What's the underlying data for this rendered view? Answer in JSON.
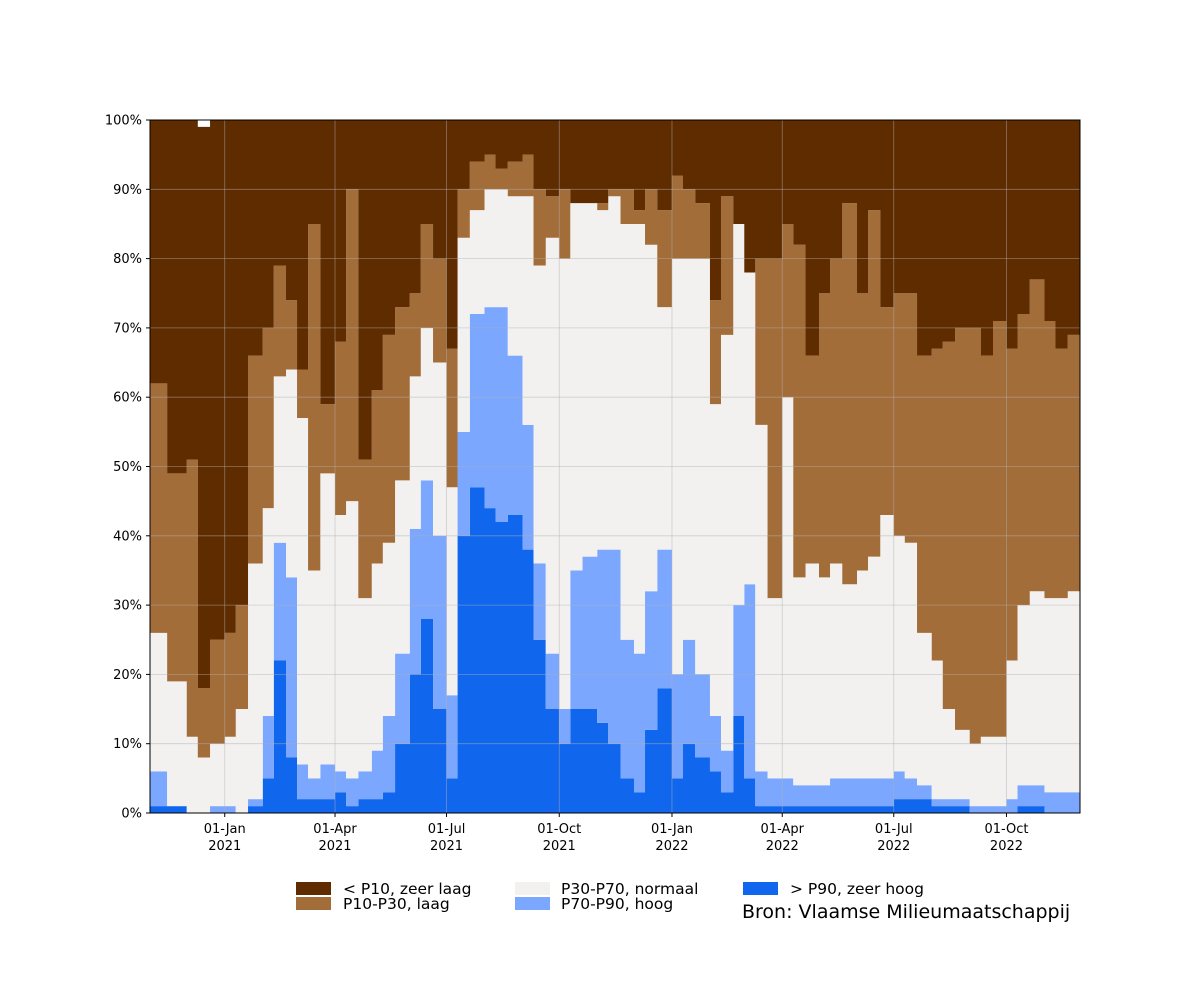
{
  "chart_data": {
    "type": "area",
    "stacked": true,
    "x_unit": "date",
    "y_unit": "percent",
    "ylim": [
      0,
      100
    ],
    "xlim": [
      "2020-11-01",
      "2022-11-30"
    ],
    "grid": true,
    "legend_placement": "bottom",
    "yticks": [
      {
        "value": 0,
        "label": "0%"
      },
      {
        "value": 10,
        "label": "10%"
      },
      {
        "value": 20,
        "label": "20%"
      },
      {
        "value": 30,
        "label": "30%"
      },
      {
        "value": 40,
        "label": "40%"
      },
      {
        "value": 50,
        "label": "50%"
      },
      {
        "value": 60,
        "label": "60%"
      },
      {
        "value": 70,
        "label": "70%"
      },
      {
        "value": 80,
        "label": "80%"
      },
      {
        "value": 90,
        "label": "90%"
      },
      {
        "value": 100,
        "label": "100%"
      }
    ],
    "xticks": [
      {
        "date": "2021-01-01",
        "label1": "01-Jan",
        "label2": "2021"
      },
      {
        "date": "2021-04-01",
        "label1": "01-Apr",
        "label2": "2021"
      },
      {
        "date": "2021-07-01",
        "label1": "01-Jul",
        "label2": "2021"
      },
      {
        "date": "2021-10-01",
        "label1": "01-Oct",
        "label2": "2021"
      },
      {
        "date": "2022-01-01",
        "label1": "01-Jan",
        "label2": "2022"
      },
      {
        "date": "2022-04-01",
        "label1": "01-Apr",
        "label2": "2022"
      },
      {
        "date": "2022-07-01",
        "label1": "01-Jul",
        "label2": "2022"
      },
      {
        "date": "2022-10-01",
        "label1": "01-Oct",
        "label2": "2022"
      }
    ],
    "dates": [
      "2020-11-01",
      "2020-11-15",
      "2020-12-01",
      "2020-12-10",
      "2020-12-20",
      "2021-01-01",
      "2021-01-10",
      "2021-01-20",
      "2021-02-01",
      "2021-02-10",
      "2021-02-20",
      "2021-03-01",
      "2021-03-10",
      "2021-03-20",
      "2021-04-01",
      "2021-04-10",
      "2021-04-20",
      "2021-05-01",
      "2021-05-10",
      "2021-05-20",
      "2021-06-01",
      "2021-06-10",
      "2021-06-20",
      "2021-07-01",
      "2021-07-10",
      "2021-07-20",
      "2021-08-01",
      "2021-08-10",
      "2021-08-20",
      "2021-09-01",
      "2021-09-10",
      "2021-09-20",
      "2021-10-01",
      "2021-10-10",
      "2021-10-20",
      "2021-11-01",
      "2021-11-10",
      "2021-11-20",
      "2021-12-01",
      "2021-12-10",
      "2021-12-20",
      "2022-01-01",
      "2022-01-10",
      "2022-01-20",
      "2022-02-01",
      "2022-02-10",
      "2022-02-20",
      "2022-03-01",
      "2022-03-10",
      "2022-03-20",
      "2022-04-01",
      "2022-04-10",
      "2022-04-20",
      "2022-05-01",
      "2022-05-10",
      "2022-05-20",
      "2022-06-01",
      "2022-06-10",
      "2022-06-20",
      "2022-07-01",
      "2022-07-10",
      "2022-07-20",
      "2022-08-01",
      "2022-08-10",
      "2022-08-20",
      "2022-09-01",
      "2022-09-10",
      "2022-09-20",
      "2022-10-01",
      "2022-10-10",
      "2022-10-20",
      "2022-11-01",
      "2022-11-10",
      "2022-11-20",
      "2022-11-30"
    ],
    "series": [
      {
        "name": "> P90, zeer hoog",
        "color": "#1166ee",
        "values": [
          1,
          1,
          0,
          0,
          0,
          0,
          0,
          1,
          5,
          22,
          8,
          2,
          2,
          2,
          3,
          1,
          2,
          2,
          3,
          10,
          20,
          28,
          15,
          5,
          40,
          47,
          44,
          42,
          43,
          38,
          25,
          15,
          10,
          15,
          15,
          13,
          10,
          5,
          3,
          12,
          18,
          5,
          10,
          8,
          6,
          3,
          14,
          5,
          1,
          1,
          1,
          1,
          1,
          1,
          1,
          1,
          1,
          1,
          1,
          2,
          2,
          2,
          1,
          1,
          1,
          0,
          0,
          0,
          0,
          1,
          1,
          0,
          0,
          0,
          1
        ]
      },
      {
        "name": "P70-P90, hoog",
        "color": "#7ba7ff",
        "values": [
          5,
          0,
          0,
          0,
          1,
          1,
          0,
          1,
          9,
          17,
          26,
          5,
          3,
          5,
          3,
          4,
          4,
          7,
          11,
          13,
          21,
          20,
          25,
          12,
          15,
          25,
          29,
          31,
          23,
          18,
          11,
          8,
          5,
          20,
          22,
          25,
          28,
          20,
          20,
          20,
          20,
          15,
          15,
          12,
          8,
          6,
          16,
          28,
          5,
          4,
          4,
          3,
          3,
          3,
          4,
          4,
          4,
          4,
          4,
          4,
          3,
          2,
          1,
          1,
          1,
          1,
          1,
          1,
          2,
          3,
          3,
          3,
          3,
          3,
          5
        ]
      },
      {
        "name": "P30-P70, normaal",
        "color": "#f2f1f0",
        "values": [
          20,
          18,
          11,
          8,
          9,
          10,
          15,
          34,
          30,
          24,
          30,
          50,
          30,
          42,
          37,
          40,
          25,
          27,
          25,
          25,
          22,
          22,
          25,
          30,
          28,
          15,
          17,
          17,
          23,
          33,
          43,
          60,
          65,
          53,
          51,
          49,
          51,
          60,
          62,
          50,
          35,
          60,
          55,
          60,
          45,
          60,
          55,
          45,
          50,
          26,
          55,
          30,
          32,
          30,
          31,
          28,
          30,
          32,
          38,
          34,
          34,
          22,
          20,
          13,
          10,
          9,
          10,
          10,
          20,
          26,
          28,
          28,
          28,
          29,
          28
        ]
      },
      {
        "name": "P10-P30, laag",
        "color": "#a36d3a",
        "values": [
          36,
          30,
          40,
          10,
          15,
          15,
          15,
          30,
          26,
          16,
          10,
          7,
          50,
          10,
          25,
          45,
          20,
          25,
          30,
          25,
          12,
          15,
          15,
          20,
          7,
          7,
          5,
          3,
          5,
          6,
          11,
          6,
          10,
          0,
          0,
          1,
          1,
          5,
          2,
          8,
          14,
          12,
          10,
          8,
          15,
          20,
          0,
          0,
          24,
          49,
          25,
          48,
          30,
          41,
          44,
          55,
          40,
          50,
          30,
          35,
          36,
          40,
          45,
          53,
          58,
          60,
          55,
          60,
          45,
          42,
          45,
          40,
          36,
          37,
          42
        ]
      },
      {
        "name": "< P10, zeer laag",
        "color": "#5f2c00",
        "values": [
          38,
          51,
          49,
          81,
          75,
          74,
          70,
          34,
          30,
          21,
          26,
          36,
          15,
          41,
          32,
          10,
          49,
          39,
          31,
          27,
          25,
          15,
          20,
          33,
          10,
          6,
          5,
          7,
          6,
          5,
          10,
          11,
          10,
          12,
          12,
          12,
          10,
          10,
          13,
          10,
          13,
          8,
          10,
          12,
          26,
          11,
          15,
          22,
          20,
          20,
          15,
          18,
          34,
          25,
          20,
          12,
          25,
          13,
          27,
          25,
          25,
          34,
          33,
          32,
          30,
          30,
          34,
          29,
          33,
          28,
          23,
          29,
          33,
          31,
          24
        ]
      }
    ]
  },
  "legend": {
    "items": [
      {
        "label": "< P10, zeer laag",
        "color": "#5f2c00"
      },
      {
        "label": "P10-P30, laag",
        "color": "#a36d3a"
      },
      {
        "label": "P30-P70, normaal",
        "color": "#f2f1f0"
      },
      {
        "label": "P70-P90, hoog",
        "color": "#7ba7ff"
      },
      {
        "label": "> P90, zeer hoog",
        "color": "#1166ee"
      }
    ]
  },
  "source": "Bron: Vlaamse Milieumaatschappij"
}
